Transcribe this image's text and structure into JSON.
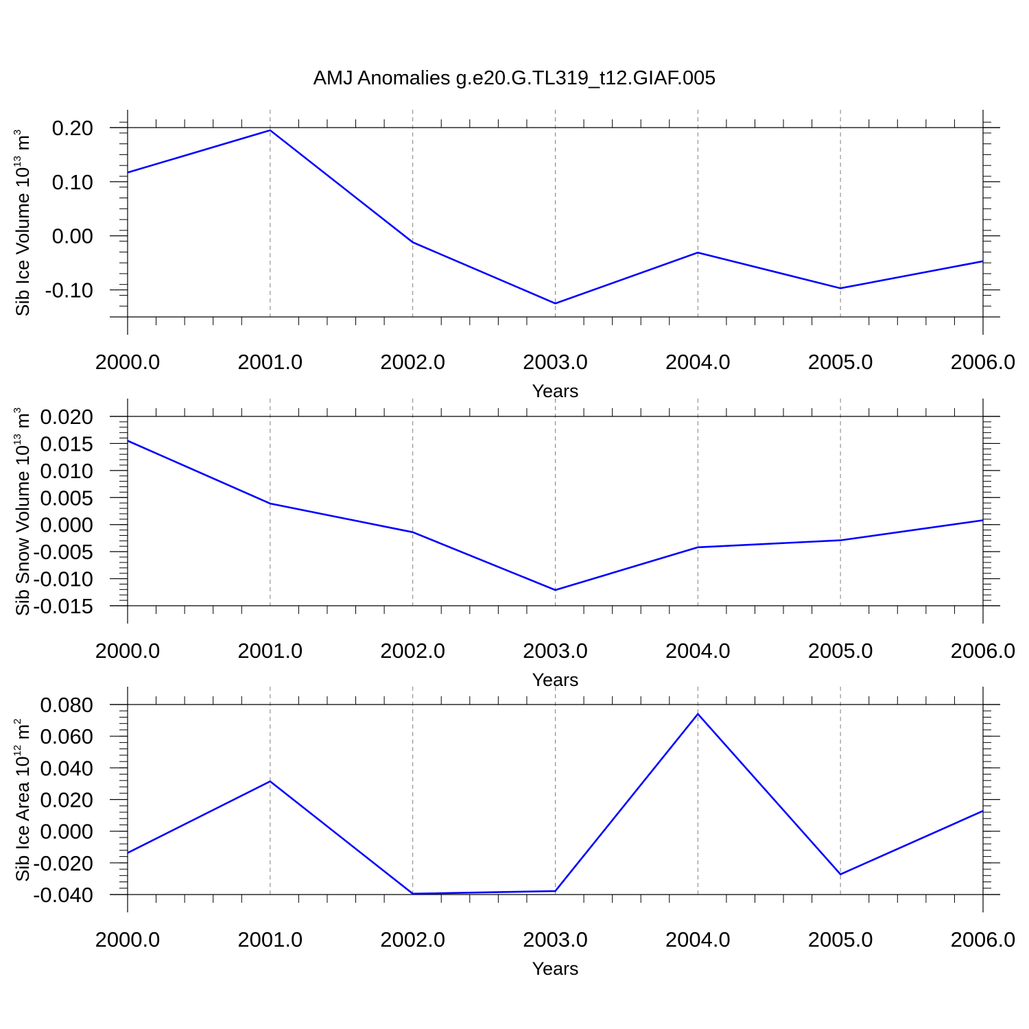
{
  "title": "AMJ Anomalies g.e20.G.TL319_t12.GIAF.005",
  "colors": {
    "line": "#0000ff",
    "frame": "#000000",
    "grid": "#808080",
    "background": "#ffffff"
  },
  "chart_data": [
    {
      "type": "line",
      "xlabel": "Years",
      "ylabel": {
        "text": "Sib Ice Volume 10",
        "exp": "13",
        "unit": " m",
        "unit_exp": "3"
      },
      "x": [
        2000,
        2001,
        2002,
        2003,
        2004,
        2005,
        2006
      ],
      "x_ticks": [
        "2000.0",
        "2001.0",
        "2002.0",
        "2003.0",
        "2004.0",
        "2005.0",
        "2006.0"
      ],
      "xlim": [
        2000,
        2006
      ],
      "ylim": [
        -0.15,
        0.2
      ],
      "y_ticks": [
        0.2,
        0.1,
        0.0,
        -0.1
      ],
      "y_tick_labels": [
        "0.20",
        "0.10",
        "0.00",
        "-0.10"
      ],
      "y_minor_step": 0.02,
      "grid": "vertical dashed at major x ticks",
      "series": [
        {
          "values": [
            0.117,
            0.195,
            -0.012,
            -0.125,
            -0.031,
            -0.097,
            -0.047
          ]
        }
      ]
    },
    {
      "type": "line",
      "xlabel": "Years",
      "ylabel": {
        "text": "Sib Snow Volume 10",
        "exp": "13",
        "unit": " m",
        "unit_exp": "3"
      },
      "x": [
        2000,
        2001,
        2002,
        2003,
        2004,
        2005,
        2006
      ],
      "x_ticks": [
        "2000.0",
        "2001.0",
        "2002.0",
        "2003.0",
        "2004.0",
        "2005.0",
        "2006.0"
      ],
      "xlim": [
        2000,
        2006
      ],
      "ylim": [
        -0.015,
        0.02
      ],
      "y_ticks": [
        0.02,
        0.015,
        0.01,
        0.005,
        0.0,
        -0.005,
        -0.01,
        -0.015
      ],
      "y_tick_labels": [
        "0.020",
        "0.015",
        "0.010",
        "0.005",
        "0.000",
        "-0.005",
        "-0.010",
        "-0.015"
      ],
      "y_minor_step": 0.001,
      "grid": "vertical dashed at major x ticks",
      "series": [
        {
          "values": [
            0.0155,
            0.0039,
            -0.0014,
            -0.0121,
            -0.0042,
            -0.0029,
            0.0008
          ]
        }
      ]
    },
    {
      "type": "line",
      "xlabel": "Years",
      "ylabel": {
        "text": "Sib Ice Area 10",
        "exp": "12",
        "unit": " m",
        "unit_exp": "2"
      },
      "x": [
        2000,
        2001,
        2002,
        2003,
        2004,
        2005,
        2006
      ],
      "x_ticks": [
        "2000.0",
        "2001.0",
        "2002.0",
        "2003.0",
        "2004.0",
        "2005.0",
        "2006.0"
      ],
      "xlim": [
        2000,
        2006
      ],
      "ylim": [
        -0.04,
        0.08
      ],
      "y_ticks": [
        0.08,
        0.06,
        0.04,
        0.02,
        0.0,
        -0.02,
        -0.04
      ],
      "y_tick_labels": [
        "0.080",
        "0.060",
        "0.040",
        "0.020",
        "0.000",
        "-0.020",
        "-0.040"
      ],
      "y_minor_step": 0.004,
      "grid": "vertical dashed at major x ticks",
      "series": [
        {
          "values": [
            -0.0137,
            0.0315,
            -0.0395,
            -0.0378,
            0.074,
            -0.0272,
            0.0128
          ]
        }
      ]
    }
  ]
}
